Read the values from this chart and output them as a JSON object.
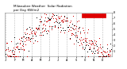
{
  "title": "Milwaukee Weather  Solar Radiation\nper Day KW/m2",
  "bg_color": "#ffffff",
  "plot_bg": "#ffffff",
  "grid_color": "#bbbbbb",
  "dot_color": "#cc0000",
  "black_color": "#000000",
  "legend_color": "#dd0000",
  "ylim": [
    0,
    8
  ],
  "ytick_vals": [
    1,
    2,
    3,
    4,
    5,
    6,
    7,
    8
  ],
  "n_points": 365,
  "months": [
    "J",
    "F",
    "M",
    "A",
    "M",
    "J",
    "J",
    "A",
    "S",
    "O",
    "N",
    "D"
  ],
  "month_positions": [
    0,
    31,
    59,
    90,
    120,
    151,
    181,
    212,
    243,
    273,
    304,
    334
  ],
  "seed": 42,
  "seasonal_base": 3.5,
  "seasonal_amp": 3.0,
  "seasonal_phase": 80,
  "noise_std": 1.2
}
